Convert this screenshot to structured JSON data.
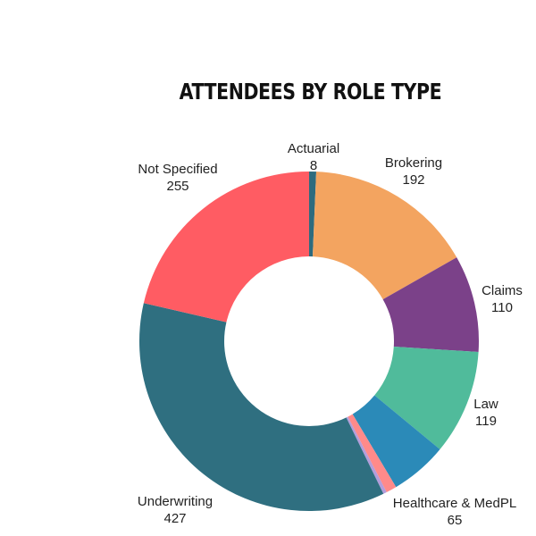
{
  "chart_data": {
    "type": "pie",
    "donut": true,
    "title": "ATTENDEES BY ROLE TYPE",
    "slices": [
      {
        "label": "Actuarial",
        "value": 8,
        "color": "#2e6b7e"
      },
      {
        "label": "Brokering",
        "value": 192,
        "color": "#f3a460"
      },
      {
        "label": "Claims",
        "value": 110,
        "color": "#7b4189"
      },
      {
        "label": "Law",
        "value": 119,
        "color": "#50bb9b"
      },
      {
        "label": "Healthcare & MedPL",
        "value": 65,
        "color": "#2b8ab8"
      },
      {
        "label": "",
        "value": 12,
        "color": "#ff8a8a"
      },
      {
        "label": "",
        "value": 4,
        "color": "#b39ddb"
      },
      {
        "label": "Underwriting",
        "value": 427,
        "color": "#2f6f80"
      },
      {
        "label": "Not Specified",
        "value": 255,
        "color": "#ff5c63"
      }
    ],
    "legend": "none"
  }
}
